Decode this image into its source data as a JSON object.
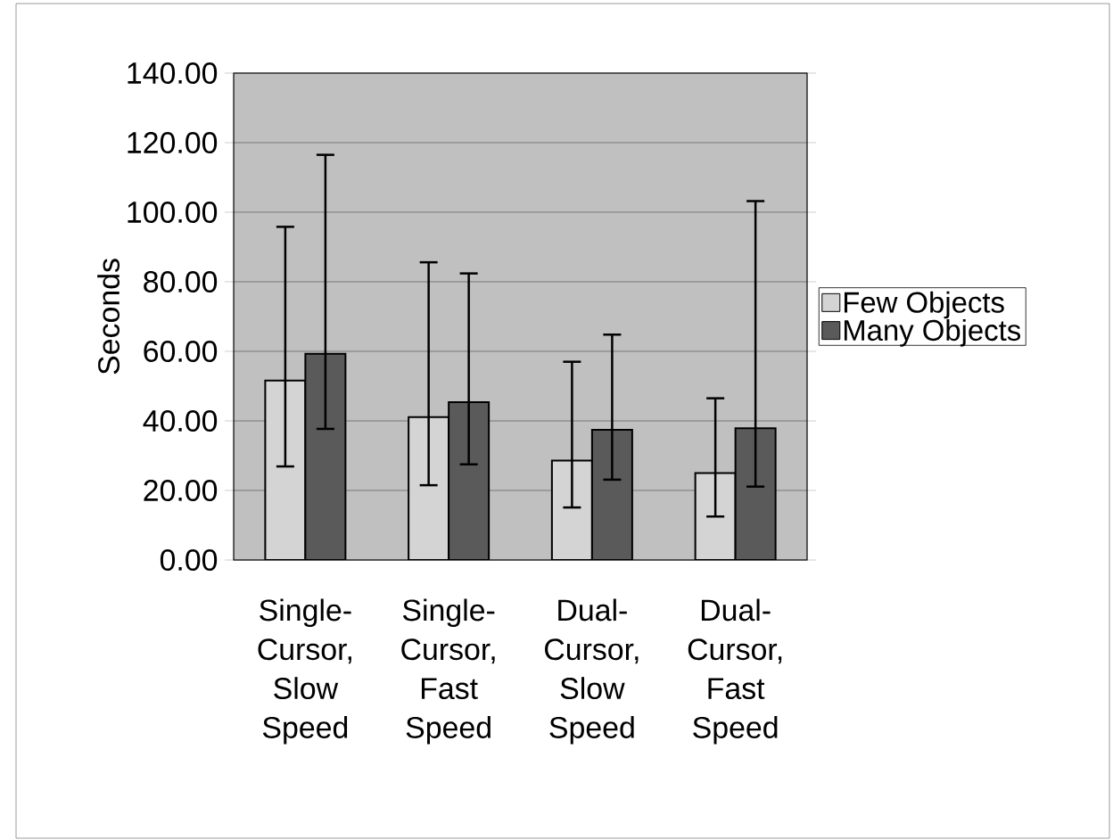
{
  "chart_data": {
    "type": "bar",
    "ylabel": "Seconds",
    "categories": [
      "Single-Cursor, Slow Speed",
      "Single-Cursor, Fast Speed",
      "Dual-Cursor, Slow Speed",
      "Dual-Cursor, Fast Speed"
    ],
    "series": [
      {
        "name": "Few Objects",
        "color": "#d4d4d4",
        "values": [
          51.6,
          41.1,
          28.6,
          25.0
        ],
        "errors": [
          [
            26.9,
            95.8
          ],
          [
            21.5,
            85.6
          ],
          [
            15.1,
            57.0
          ],
          [
            12.5,
            46.5
          ]
        ]
      },
      {
        "name": "Many Objects",
        "color": "#5a5a5a",
        "values": [
          59.3,
          45.4,
          37.4,
          37.9
        ],
        "errors": [
          [
            37.7,
            116.5
          ],
          [
            27.5,
            82.4
          ],
          [
            23.1,
            64.8
          ],
          [
            21.1,
            103.2
          ]
        ]
      }
    ],
    "ylim": [
      0,
      140
    ],
    "yticks": [
      {
        "value": 0,
        "label": "0.00"
      },
      {
        "value": 20,
        "label": "20.00"
      },
      {
        "value": 40,
        "label": "40.00"
      },
      {
        "value": 60,
        "label": "60.00"
      },
      {
        "value": 80,
        "label": "80.00"
      },
      {
        "value": 100,
        "label": "100.00"
      },
      {
        "value": 120,
        "label": "120.00"
      },
      {
        "value": 140,
        "label": "140.00"
      }
    ],
    "grid": "y",
    "legend": "right"
  }
}
